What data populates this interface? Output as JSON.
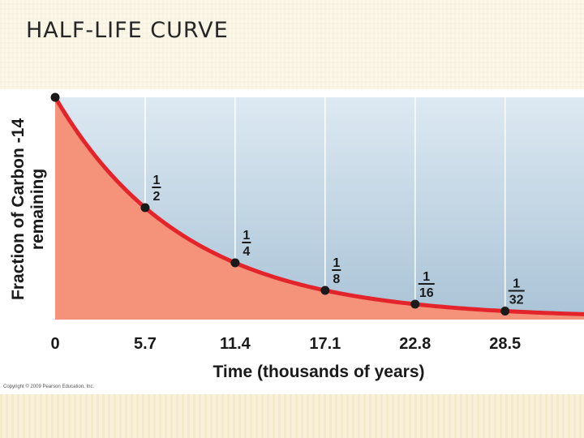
{
  "slide": {
    "title": "HALF-LIFE CURVE",
    "copyright": "Copyright © 2009 Pearson Education, Inc."
  },
  "colors": {
    "curve": "#e3242b",
    "fill": "#f4927a",
    "plot_bg_top": "#dde9f2",
    "plot_bg_bottom": "#a9c3d6",
    "gridline": "#ffffff",
    "point": "#1a1a1a",
    "text": "#1a1a1a"
  },
  "chart_data": {
    "type": "line",
    "xlabel": "Time (thousands of years)",
    "ylabel": "Fraction of Carbon -14 remaining",
    "xlim": [
      0,
      33.5
    ],
    "ylim": [
      0,
      1
    ],
    "grid": true,
    "filled_area": true,
    "x_ticks": [
      {
        "value": 0,
        "label": "0"
      },
      {
        "value": 5.7,
        "label": "5.7"
      },
      {
        "value": 11.4,
        "label": "11.4"
      },
      {
        "value": 17.1,
        "label": "17.1"
      },
      {
        "value": 22.8,
        "label": "22.8"
      },
      {
        "value": 28.5,
        "label": "28.5"
      }
    ],
    "series": [
      {
        "type": "exponential_decay",
        "half_life": 5.7,
        "points": [
          {
            "x": 0,
            "y": 1
          },
          {
            "x": 5.7,
            "y": 0.5
          },
          {
            "x": 11.4,
            "y": 0.25
          },
          {
            "x": 17.1,
            "y": 0.125
          },
          {
            "x": 22.8,
            "y": 0.0625
          },
          {
            "x": 28.5,
            "y": 0.03125
          }
        ]
      }
    ],
    "annotations": [
      {
        "x": 5.7,
        "numerator": "1",
        "denominator": "2"
      },
      {
        "x": 11.4,
        "numerator": "1",
        "denominator": "4"
      },
      {
        "x": 17.1,
        "numerator": "1",
        "denominator": "8"
      },
      {
        "x": 22.8,
        "numerator": "1",
        "denominator": "16"
      },
      {
        "x": 28.5,
        "numerator": "1",
        "denominator": "32"
      }
    ]
  }
}
